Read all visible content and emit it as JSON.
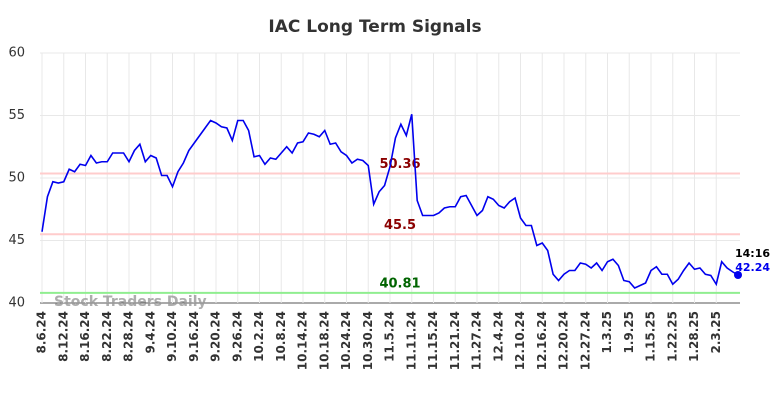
{
  "chart_data": {
    "type": "line",
    "title": "IAC Long Term Signals",
    "watermark": "Stock Traders Daily",
    "categories": [
      "8.6.24",
      null,
      null,
      null,
      "8.12.24",
      null,
      null,
      null,
      "8.16.24",
      null,
      null,
      null,
      "8.22.24",
      null,
      null,
      null,
      "8.28.24",
      null,
      null,
      null,
      "9.4.24",
      null,
      null,
      null,
      "9.10.24",
      null,
      null,
      null,
      "9.16.24",
      null,
      null,
      null,
      "9.20.24",
      null,
      null,
      null,
      "9.26.24",
      null,
      null,
      null,
      "10.2.24",
      null,
      null,
      null,
      "10.8.24",
      null,
      null,
      null,
      "10.14.24",
      null,
      null,
      null,
      "10.18.24",
      null,
      null,
      null,
      "10.24.24",
      null,
      null,
      null,
      "10.30.24",
      null,
      null,
      null,
      "11.5.24",
      null,
      null,
      null,
      "11.11.24",
      null,
      null,
      null,
      "11.15.24",
      null,
      null,
      null,
      "11.21.24",
      null,
      null,
      null,
      "11.27.24",
      null,
      null,
      null,
      "12.4.24",
      null,
      null,
      null,
      "12.10.24",
      null,
      null,
      null,
      "12.16.24",
      null,
      null,
      null,
      "12.20.24",
      null,
      null,
      null,
      "12.27.24",
      null,
      null,
      null,
      "1.3.25",
      null,
      null,
      null,
      "1.9.25",
      null,
      null,
      null,
      "1.15.25",
      null,
      null,
      null,
      "1.22.25",
      null,
      null,
      null,
      "1.28.25",
      null,
      null,
      null,
      "2.3.25",
      null,
      null,
      null,
      null
    ],
    "series": [
      {
        "color": "#0000ee",
        "values": [
          45.7,
          48.5,
          49.7,
          49.6,
          49.7,
          50.7,
          50.5,
          51.1,
          51.0,
          51.8,
          51.2,
          51.3,
          51.3,
          52.0,
          52.0,
          52.0,
          51.3,
          52.2,
          52.7,
          51.3,
          51.8,
          51.6,
          50.2,
          50.2,
          49.3,
          50.5,
          51.2,
          52.2,
          52.8,
          53.4,
          54.0,
          54.6,
          54.4,
          54.1,
          54.0,
          53.0,
          54.6,
          54.6,
          53.8,
          51.7,
          51.8,
          51.1,
          51.6,
          51.5,
          52.0,
          52.5,
          52.0,
          52.8,
          52.9,
          53.6,
          53.5,
          53.3,
          53.8,
          52.7,
          52.8,
          52.1,
          51.8,
          51.2,
          51.5,
          51.4,
          51.0,
          47.9,
          48.9,
          49.4,
          50.9,
          53.2,
          54.3,
          53.4,
          55.1,
          48.2,
          47.0,
          47.0,
          47.0,
          47.2,
          47.6,
          47.7,
          47.7,
          48.5,
          48.6,
          47.8,
          47.0,
          47.4,
          48.5,
          48.3,
          47.8,
          47.6,
          48.1,
          48.4,
          46.8,
          46.2,
          46.2,
          44.6,
          44.8,
          44.2,
          42.3,
          41.8,
          42.3,
          42.6,
          42.6,
          43.2,
          43.1,
          42.8,
          43.2,
          42.6,
          43.3,
          43.5,
          43.0,
          41.8,
          41.7,
          41.2,
          41.4,
          41.6,
          42.6,
          42.9,
          42.3,
          42.3,
          41.5,
          41.9,
          42.6,
          43.2,
          42.7,
          42.8,
          42.3,
          42.2,
          41.5,
          43.3,
          42.8,
          42.5,
          42.24
        ]
      }
    ],
    "last_time": "14:16",
    "hlines": [
      {
        "value": 50.36,
        "color": "#ffcccc",
        "label_color": "#8b0000"
      },
      {
        "value": 45.5,
        "color": "#ffcccc",
        "label_color": "#8b0000"
      },
      {
        "value": 40.81,
        "color": "#90ee90",
        "label_color": "#006400"
      }
    ],
    "ylim": [
      40,
      60
    ],
    "yticks": [
      40,
      45,
      50,
      55,
      60
    ],
    "grid": true
  }
}
